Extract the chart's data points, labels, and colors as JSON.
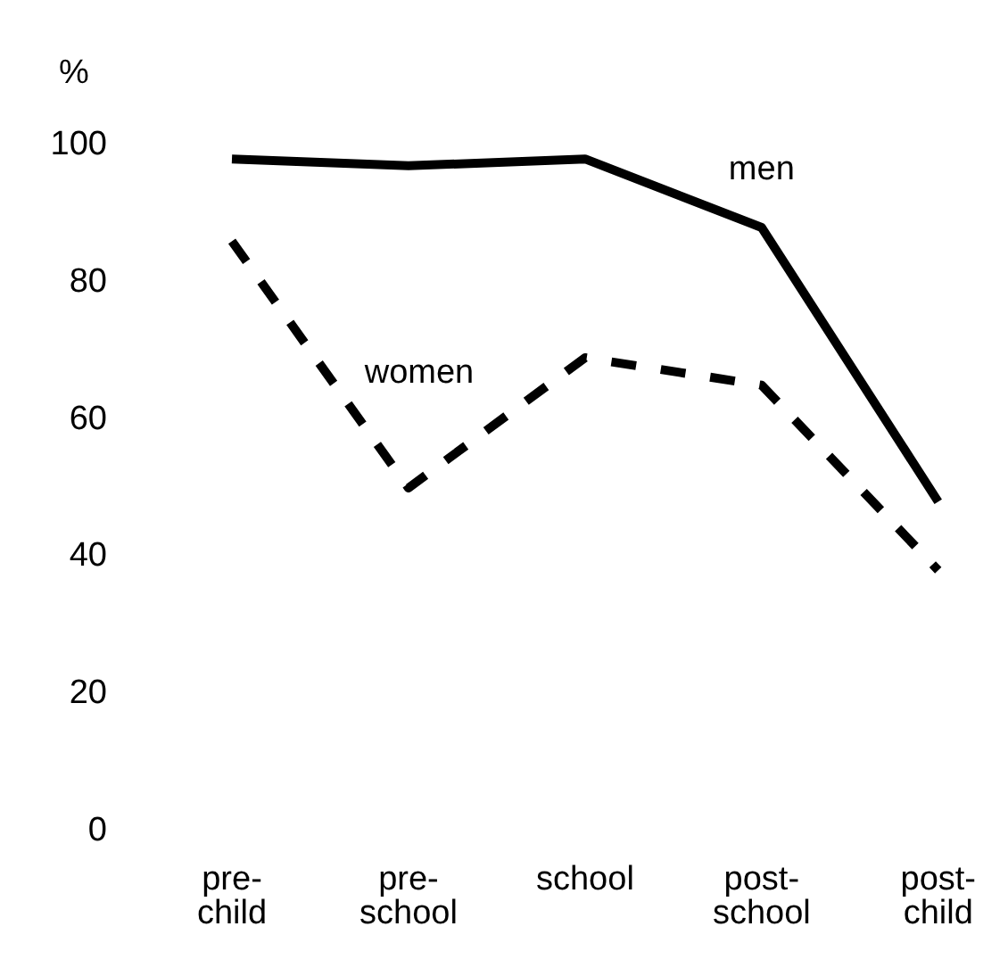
{
  "chart_data": {
    "type": "line",
    "ylabel": "%",
    "categories": [
      "pre-child",
      "pre-school",
      "school",
      "post-school",
      "post-child"
    ],
    "series": [
      {
        "name": "men",
        "color": "#000000",
        "line_style": "solid",
        "values": [
          98,
          97,
          98,
          88,
          48
        ]
      },
      {
        "name": "women",
        "color": "#000000",
        "line_style": "dashed",
        "values": [
          86,
          50,
          69,
          65,
          38
        ]
      }
    ],
    "ylim": [
      0,
      100
    ],
    "yticks": [
      0,
      20,
      40,
      60,
      80,
      100
    ],
    "grid": false,
    "legend": false,
    "marker": "none"
  }
}
